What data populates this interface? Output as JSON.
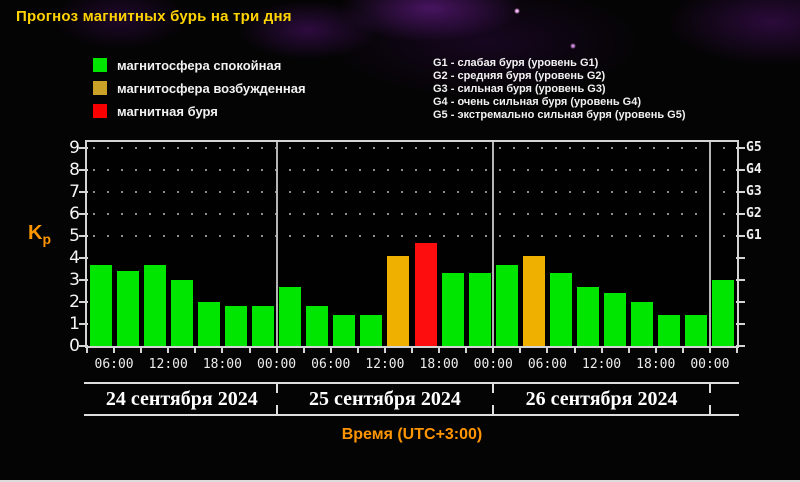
{
  "title": {
    "text": "Прогноз магнитных бурь на три дня",
    "color": "#ffd400"
  },
  "legend": {
    "items": [
      {
        "label": "магнитосфера спокойная",
        "level": "quiet",
        "color": "#00e600"
      },
      {
        "label": "магнитосфера возбужденная",
        "level": "excited",
        "color": "#c9a227"
      },
      {
        "label": "магнитная буря",
        "level": "storm",
        "color": "#f80000"
      }
    ]
  },
  "storm_scale": {
    "lines": [
      "G1 - слабая буря (уровень G1)",
      "G2 - средняя буря (уровень G2)",
      "G3 - сильная буря (уровень G3)",
      "G4 - очень сильная буря (уровень G4)",
      "G5 - экстремально сильная буря (уровень G5)"
    ]
  },
  "chart_data": {
    "type": "bar",
    "title": "Прогноз магнитных бурь на три дня",
    "ylabel": "Kp",
    "ylabel_color": "#ff9500",
    "xlabel": "Время (UTC+3:00)",
    "xlabel_color": "#ff9500",
    "ylim": [
      0,
      9
    ],
    "yticks": [
      0,
      1,
      2,
      3,
      4,
      5,
      6,
      7,
      8,
      9
    ],
    "grid_rows_kp": [
      5,
      6,
      7,
      8,
      9
    ],
    "grid": "dotted horizontal rows at Kp 5-9",
    "legend_position": "top-left",
    "right_axis": [
      {
        "label": "G1",
        "kp": 5
      },
      {
        "label": "G2",
        "kp": 6
      },
      {
        "label": "G3",
        "kp": 7
      },
      {
        "label": "G4",
        "kp": 8
      },
      {
        "label": "G5",
        "kp": 9
      }
    ],
    "bar_colors": {
      "quiet": "#00e600",
      "excited": "#efb000",
      "storm": "#fd0d0d"
    },
    "hours_per_bar": 3,
    "time_tick_labels": [
      "06:00",
      "12:00",
      "18:00",
      "00:00"
    ],
    "days": [
      {
        "date": "24 сентября 2024",
        "bars": [
          {
            "kp": 3.7,
            "level": "quiet"
          },
          {
            "kp": 3.4,
            "level": "quiet"
          },
          {
            "kp": 3.7,
            "level": "quiet"
          },
          {
            "kp": 3.0,
            "level": "quiet"
          },
          {
            "kp": 2.0,
            "level": "quiet"
          },
          {
            "kp": 1.8,
            "level": "quiet"
          },
          {
            "kp": 1.8,
            "level": "quiet"
          }
        ]
      },
      {
        "date": "25 сентября 2024",
        "bars": [
          {
            "kp": 2.7,
            "level": "quiet"
          },
          {
            "kp": 1.8,
            "level": "quiet"
          },
          {
            "kp": 1.4,
            "level": "quiet"
          },
          {
            "kp": 1.4,
            "level": "quiet"
          },
          {
            "kp": 4.1,
            "level": "excited"
          },
          {
            "kp": 4.7,
            "level": "storm"
          },
          {
            "kp": 3.3,
            "level": "quiet"
          },
          {
            "kp": 3.3,
            "level": "quiet"
          }
        ]
      },
      {
        "date": "26 сентября 2024",
        "bars": [
          {
            "kp": 3.7,
            "level": "quiet"
          },
          {
            "kp": 4.1,
            "level": "excited"
          },
          {
            "kp": 3.3,
            "level": "quiet"
          },
          {
            "kp": 2.7,
            "level": "quiet"
          },
          {
            "kp": 2.4,
            "level": "quiet"
          },
          {
            "kp": 2.0,
            "level": "quiet"
          },
          {
            "kp": 1.4,
            "level": "quiet"
          },
          {
            "kp": 1.4,
            "level": "quiet"
          }
        ]
      }
    ],
    "trailing_bars": [
      {
        "kp": 3.0,
        "level": "quiet"
      }
    ]
  }
}
